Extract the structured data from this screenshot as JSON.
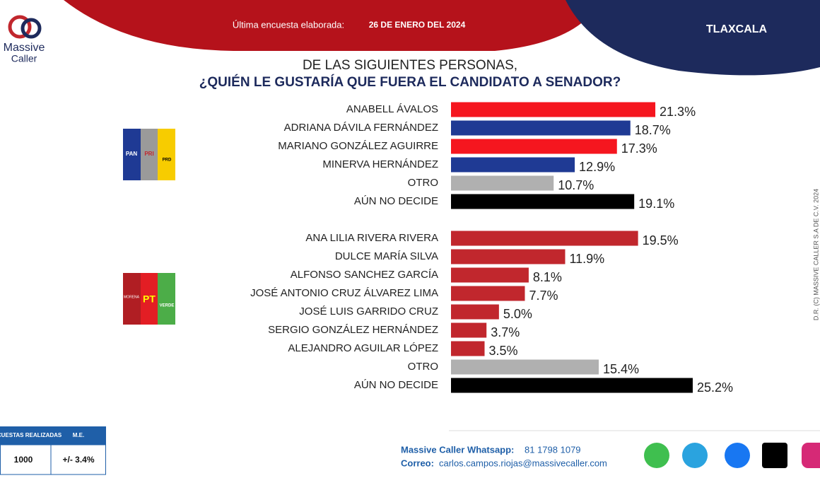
{
  "header": {
    "survey_label": "Última encuesta elaborada:",
    "survey_date": "26 DE ENERO DEL 2024",
    "region": "TLAXCALA"
  },
  "logo": {
    "line1": "Massive",
    "line2": "Caller"
  },
  "question": [
    "DE LAS SIGUIENTES PERSONAS,",
    "¿QUIÉN LE GUSTARÍA QUE FUERA EL CANDIDATO  A SENADOR?"
  ],
  "party_logos": [
    [
      "PAN",
      "PRI",
      "PRD"
    ],
    [
      "MORENA",
      "PT",
      "VERDE"
    ]
  ],
  "copyright": "D.R. (C) MASSIVE CALLER S.A DE C.V. 2024",
  "chart_data": [
    {
      "type": "bar",
      "orientation": "horizontal",
      "categories": [
        "ANABELL ÁVALOS",
        "ADRIANA DÁVILA FERNÁNDEZ",
        "MARIANO GONZÁLEZ AGUIRRE",
        "MINERVA HERNÁNDEZ",
        "OTRO",
        "AÚN NO DECIDE"
      ],
      "values": [
        21.3,
        18.7,
        17.3,
        12.9,
        10.7,
        19.1
      ],
      "value_labels": [
        "21.3%",
        "18.7%",
        "17.3%",
        "12.9%",
        "10.7%",
        "19.1%"
      ],
      "colors": [
        "#f5161f",
        "#1f3a94",
        "#f5161f",
        "#1f3a94",
        "#b0b0b0",
        "#000000"
      ]
    },
    {
      "type": "bar",
      "orientation": "horizontal",
      "categories": [
        "ANA LILIA RIVERA RIVERA",
        "DULCE MARÍA SILVA",
        "ALFONSO SANCHEZ GARCÍA",
        "JOSÉ ANTONIO CRUZ ÁLVAREZ LIMA",
        "JOSÉ LUIS GARRIDO CRUZ",
        "SERGIO GONZÁLEZ HERNÁNDEZ",
        "ALEJANDRO AGUILAR LÓPEZ",
        "OTRO",
        "AÚN NO DECIDE"
      ],
      "values": [
        19.5,
        11.9,
        8.1,
        7.7,
        5.0,
        3.7,
        3.5,
        15.4,
        25.2
      ],
      "value_labels": [
        "19.5%",
        "11.9%",
        "8.1%",
        "7.7%",
        "5.0%",
        "3.7%",
        "3.5%",
        "15.4%",
        "25.2%"
      ],
      "colors": [
        "#c1272d",
        "#c1272d",
        "#c1272d",
        "#c1272d",
        "#c1272d",
        "#c1272d",
        "#c1272d",
        "#b0b0b0",
        "#000000"
      ]
    }
  ],
  "sample_table": {
    "headers": [
      "ENCUESTAS REALIZADAS",
      "M.E."
    ],
    "row": [
      "1000",
      "+/- 3.4%"
    ]
  },
  "footer": {
    "whatsapp_label": "Massive Caller Whatsapp:",
    "whatsapp": "81 1798 1079",
    "email_label": "Correo:",
    "email": "carlos.campos.riojas@massivecaller.com"
  }
}
